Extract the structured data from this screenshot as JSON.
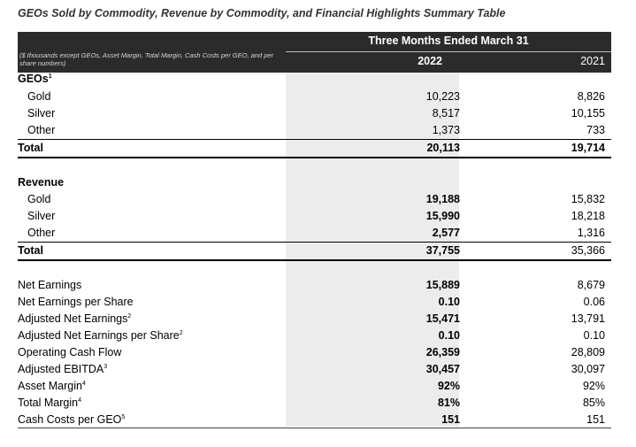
{
  "title": "GEOs Sold by Commodity, Revenue by Commodity, and Financial Highlights Summary Table",
  "header": {
    "note": "($ thousands except GEOs, Asset Margin, Total Margin, Cash Costs per GEO, and per share numbers)",
    "period": "Three Months Ended March 31",
    "year1": "2022",
    "year2": "2021"
  },
  "geos": {
    "heading": "GEOs",
    "heading_sup": "1",
    "rows": [
      {
        "label": "Gold",
        "v2022": "10,223",
        "v2021": "8,826"
      },
      {
        "label": "Silver",
        "v2022": "8,517",
        "v2021": "10,155"
      },
      {
        "label": "Other",
        "v2022": "1,373",
        "v2021": "733"
      }
    ],
    "total": {
      "label": "Total",
      "v2022": "20,113",
      "v2021": "19,714"
    }
  },
  "revenue": {
    "heading": "Revenue",
    "rows": [
      {
        "label": "Gold",
        "v2022": "19,188",
        "v2021": "15,832"
      },
      {
        "label": "Silver",
        "v2022": "15,990",
        "v2021": "18,218"
      },
      {
        "label": "Other",
        "v2022": "2,577",
        "v2021": "1,316"
      }
    ],
    "total": {
      "label": "Total",
      "v2022": "37,755",
      "v2021": "35,366"
    }
  },
  "highlights": [
    {
      "label": "Net Earnings",
      "sup": "",
      "v2022": "15,889",
      "v2021": "8,679"
    },
    {
      "label": "Net Earnings per Share",
      "sup": "",
      "v2022": "0.10",
      "v2021": "0.06"
    },
    {
      "label": "Adjusted Net Earnings",
      "sup": "2",
      "v2022": "15,471",
      "v2021": "13,791"
    },
    {
      "label": "Adjusted Net Earnings per Share",
      "sup": "2",
      "v2022": "0.10",
      "v2021": "0.10"
    },
    {
      "label": "Operating Cash Flow",
      "sup": "",
      "v2022": "26,359",
      "v2021": "28,809"
    },
    {
      "label": "Adjusted EBITDA",
      "sup": "3",
      "v2022": "30,457",
      "v2021": "30,097"
    },
    {
      "label": "Asset Margin",
      "sup": "4",
      "v2022": "92%",
      "v2021": "92%"
    },
    {
      "label": "Total Margin",
      "sup": "4",
      "v2022": "81%",
      "v2021": "85%"
    },
    {
      "label": "Cash Costs per GEO",
      "sup": "5",
      "v2022": "151",
      "v2021": "151"
    }
  ]
}
